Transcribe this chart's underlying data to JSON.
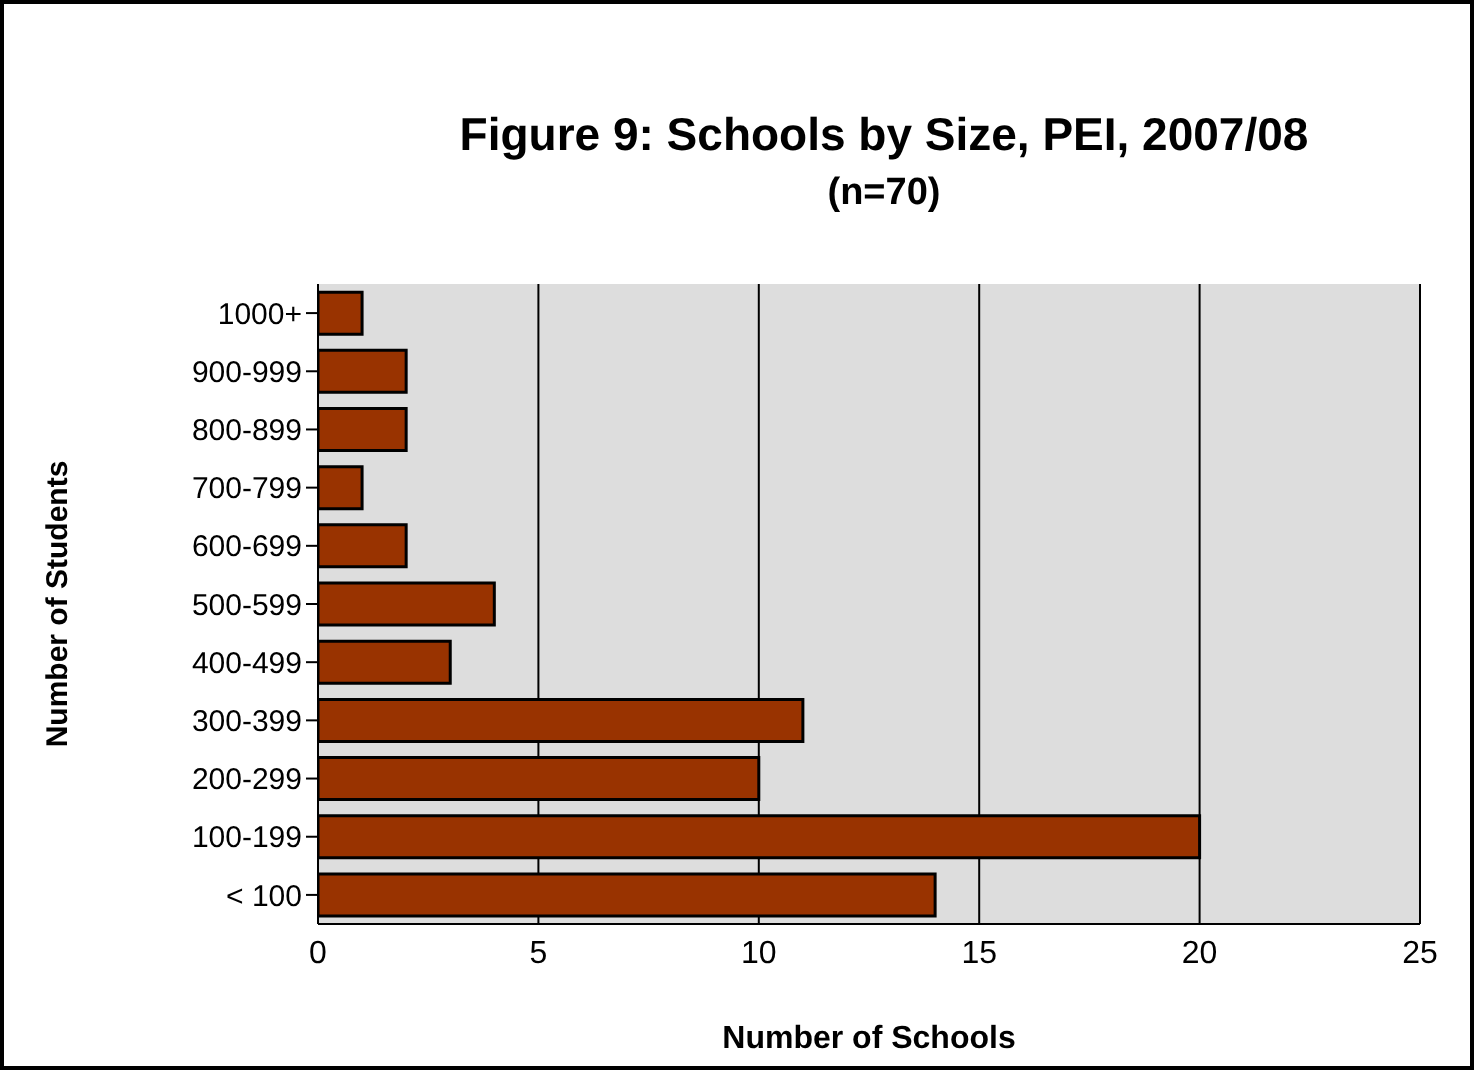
{
  "chart_data": {
    "type": "bar",
    "orientation": "horizontal",
    "title": "Figure 9: Schools by Size, PEI, 2007/08",
    "subtitle": "(n=70)",
    "xlabel": "Number of Schools",
    "ylabel": "Number of  Students",
    "categories": [
      "1000+",
      "900-999",
      "800-899",
      "700-799",
      "600-699",
      "500-599",
      "400-499",
      "300-399",
      "200-299",
      "100-199",
      "< 100"
    ],
    "values": [
      1,
      2,
      2,
      1,
      2,
      4,
      3,
      11,
      10,
      20,
      14
    ],
    "color": "#993300",
    "xlim": [
      0,
      25
    ],
    "xticks": [
      0,
      5,
      10,
      15,
      20,
      25
    ],
    "grid": "x"
  }
}
